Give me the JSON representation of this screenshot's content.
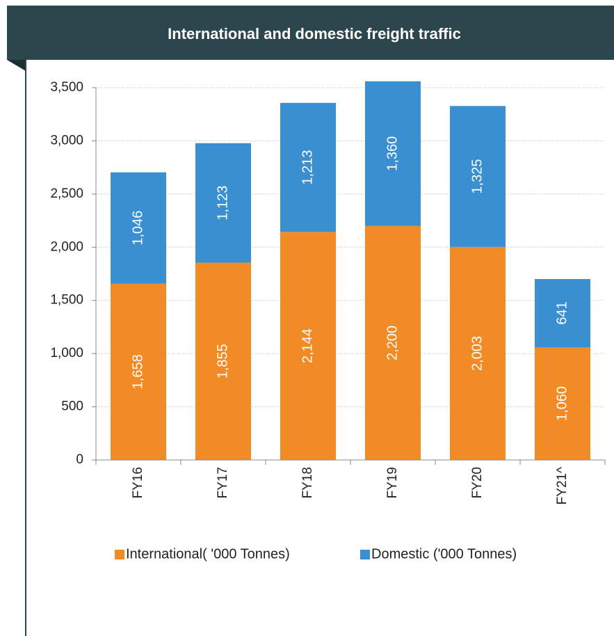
{
  "chart_data": {
    "type": "stacked_bar",
    "title": "International and domestic freight traffic",
    "categories": [
      "FY16",
      "FY17",
      "FY18",
      "FY19",
      "FY20",
      "FY21^"
    ],
    "series": [
      {
        "name": "International( '000 Tonnes)",
        "color": "#f28b26",
        "values": [
          1658,
          1855,
          2144,
          2200,
          2003,
          1060
        ],
        "value_labels": [
          "1,658",
          "1,855",
          "2,144",
          "2,200",
          "2,003",
          "1,060"
        ]
      },
      {
        "name": "Domestic ('000 Tonnes)",
        "color": "#3a8fd0",
        "values": [
          1046,
          1123,
          1213,
          1360,
          1325,
          641
        ],
        "value_labels": [
          "1,046",
          "1,123",
          "1,213",
          "1,360",
          "1,325",
          "641"
        ]
      }
    ],
    "ylim": [
      0,
      3500
    ],
    "yticks": [
      0,
      500,
      {
        "value": 1000,
        "label": "1,000"
      },
      {
        "value": 1500,
        "label": "1,500"
      },
      {
        "value": 2000,
        "label": "2,000"
      },
      {
        "value": 2500,
        "label": "2,500"
      },
      {
        "value": 3000,
        "label": "3,000"
      },
      {
        "value": 3500,
        "label": "3,500"
      }
    ],
    "grid": true,
    "legend": "bottom"
  }
}
